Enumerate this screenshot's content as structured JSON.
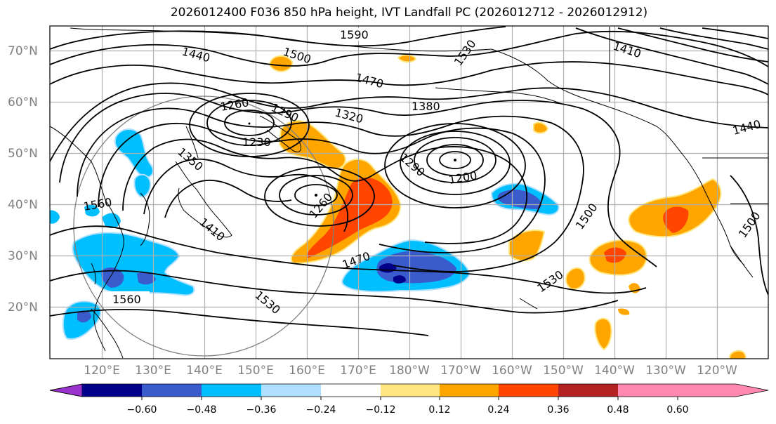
{
  "title": "2026012400 F036 850 hPa height, IVT Landfall PC (2026012712 - 2026012912)",
  "map": {
    "lat_labels": [
      "70°N",
      "60°N",
      "50°N",
      "40°N",
      "30°N",
      "20°N"
    ],
    "lon_labels": [
      "120°E",
      "130°E",
      "140°E",
      "150°E",
      "160°E",
      "170°E",
      "180°W",
      "170°W",
      "160°W",
      "150°W",
      "140°W",
      "130°W",
      "120°W"
    ],
    "contour_labels": [
      "1560",
      "1590",
      "1500",
      "1440",
      "1470",
      "1530",
      "1380",
      "1410",
      "1350",
      "1320",
      "1260",
      "1290",
      "1230",
      "1200",
      "1260",
      "1530",
      "1500",
      "1470",
      "1530",
      "1560",
      "1500",
      "1440",
      "1410",
      "1290"
    ],
    "lows": [
      "low-west-kamchatka",
      "low-mid-pacific",
      "low-kuril"
    ]
  },
  "colorbar": {
    "ticks": [
      "−0.60",
      "−0.48",
      "−0.36",
      "−0.24",
      "−0.12",
      "0.12",
      "0.24",
      "0.36",
      "0.48",
      "0.60"
    ],
    "colors": [
      "#9932cc",
      "#00008b",
      "#3a5bcc",
      "#00bfff",
      "#b0e0ff",
      "#ffffff",
      "#ffe680",
      "#ffa500",
      "#ff4500",
      "#b22222",
      "#ff88b0"
    ]
  }
}
